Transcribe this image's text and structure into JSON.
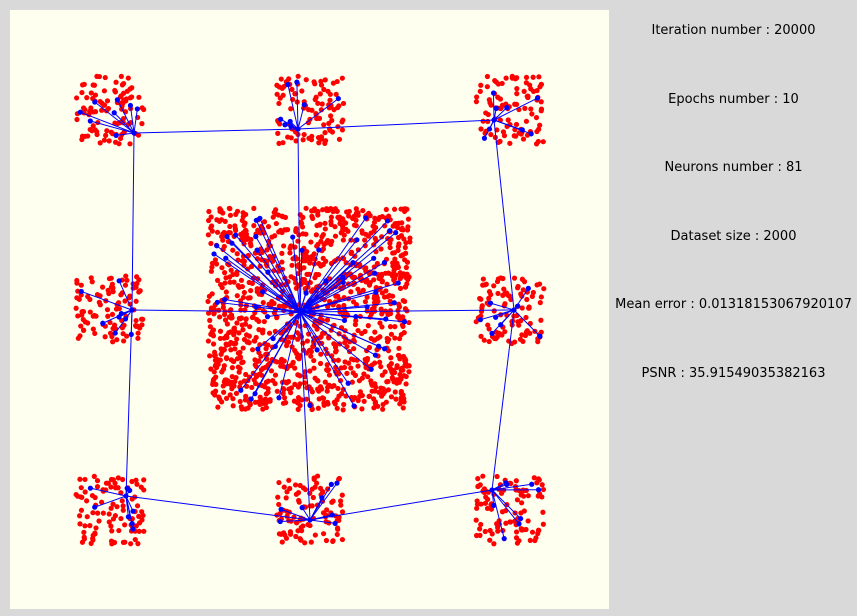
{
  "panel": {
    "lines": [
      "Iteration number : 20000",
      "Epochs number : 10",
      "Neurons number : 81",
      "Dataset size : 2000",
      "Mean error : 0.01318153067920107",
      "PSNR : 35.91549035382163"
    ]
  }
}
